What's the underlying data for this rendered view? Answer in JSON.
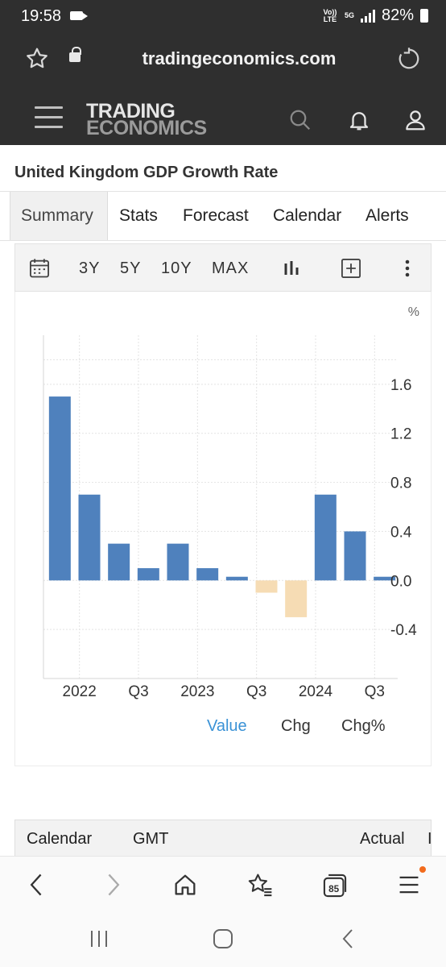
{
  "status_bar": {
    "time": "19:58",
    "network_top": "Vo)) LTE",
    "network_5g": "5G",
    "battery": "82%"
  },
  "browser": {
    "url": "tradingeconomics.com",
    "tab_count": "85"
  },
  "site": {
    "logo_line1": "TRADING",
    "logo_line2": "ECONOMICS"
  },
  "page": {
    "title": "United Kingdom GDP Growth Rate",
    "tabs": [
      {
        "label": "Summary",
        "active": true
      },
      {
        "label": "Stats",
        "active": false
      },
      {
        "label": "Forecast",
        "active": false
      },
      {
        "label": "Calendar",
        "active": false
      },
      {
        "label": "Alerts",
        "active": false
      }
    ]
  },
  "toolbar": {
    "ranges": [
      "3Y",
      "5Y",
      "10Y",
      "MAX"
    ]
  },
  "chart_data": {
    "type": "bar",
    "unit_label": "%",
    "categories": [
      "2021 Q4",
      "2022 Q1",
      "2022 Q2",
      "2022 Q3",
      "2022 Q4",
      "2023 Q1",
      "2023 Q2",
      "2023 Q3",
      "2023 Q4",
      "2024 Q1",
      "2024 Q2",
      "2024 Q3"
    ],
    "values": [
      1.5,
      0.7,
      0.3,
      0.1,
      0.3,
      0.1,
      0.03,
      -0.1,
      -0.3,
      0.7,
      0.4,
      0.03
    ],
    "x_tick_labels": [
      "2022",
      "Q3",
      "2023",
      "Q3",
      "2024",
      "Q3"
    ],
    "y_ticks": [
      -0.4,
      0.0,
      0.4,
      0.8,
      1.2,
      1.6
    ],
    "y_tick_labels": [
      "-0.4",
      "0.0",
      "0.4",
      "0.8",
      "1.2",
      "1.6"
    ],
    "ylim": [
      -0.8,
      2.0
    ],
    "positive_color": "#4f81bd",
    "negative_color": "#f6dcb4",
    "grid": true
  },
  "series_toggles": [
    {
      "label": "Value",
      "active": true
    },
    {
      "label": "Chg",
      "active": false
    },
    {
      "label": "Chg%",
      "active": false
    }
  ],
  "calendar_table": {
    "headers": [
      "Calendar",
      "GMT",
      "Actual",
      "I"
    ]
  }
}
